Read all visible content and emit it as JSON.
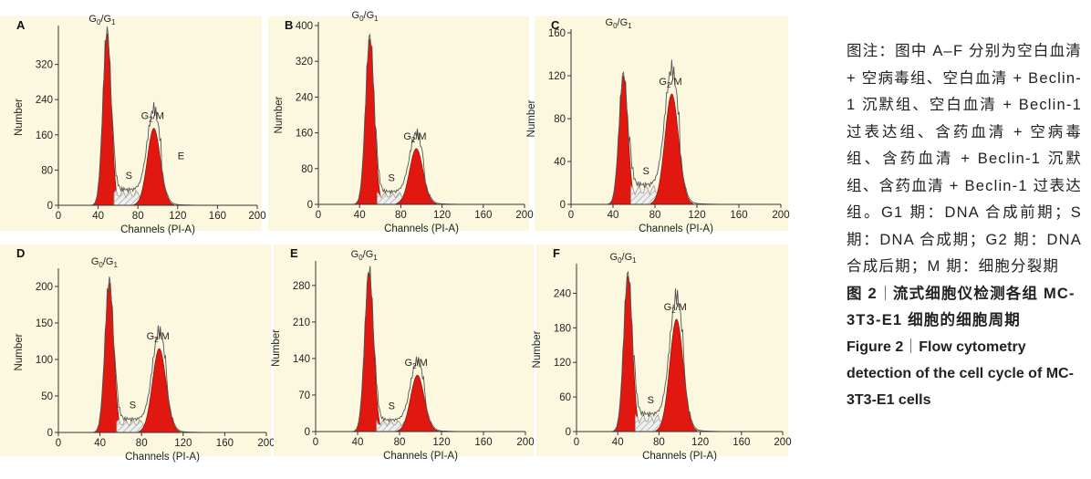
{
  "figure": {
    "chart_data": [
      {
        "type": "area",
        "panel_label": "A",
        "title": "",
        "xlabel": "Channels (PI-A)",
        "ylabel": "Number",
        "xlim": [
          0,
          200
        ],
        "ylim": [
          0,
          400
        ],
        "xticks": [
          "0",
          "40",
          "80",
          "120",
          "160",
          "200"
        ],
        "yticks": [
          "0",
          "80",
          "160",
          "240",
          "320"
        ],
        "phases": {
          "g0g1_peak": {
            "x": 49,
            "y": 390
          },
          "g2m_peak": {
            "x": 96,
            "y": 175
          },
          "s_level": 35
        },
        "annotations": [
          {
            "text": "G0/G1",
            "sub": [
              "0",
              "1"
            ],
            "base": [
              "G",
              "/G"
            ]
          },
          {
            "text": "G2/M"
          },
          {
            "text": "S"
          },
          {
            "text": "E"
          }
        ]
      },
      {
        "type": "area",
        "panel_label": "B",
        "title": "",
        "xlabel": "Channels (PI-A)",
        "ylabel": "Number",
        "xlim": [
          0,
          200
        ],
        "ylim": [
          0,
          400
        ],
        "xticks": [
          "0",
          "40",
          "80",
          "120",
          "160",
          "200"
        ],
        "yticks": [
          "0",
          "80",
          "160",
          "240",
          "320",
          "400"
        ],
        "phases": {
          "g0g1_peak": {
            "x": 50,
            "y": 370
          },
          "g2m_peak": {
            "x": 95,
            "y": 125
          },
          "s_level": 28
        },
        "annotations": [
          {
            "text": "G0/G1"
          },
          {
            "text": "G2/M"
          },
          {
            "text": "S"
          }
        ]
      },
      {
        "type": "area",
        "panel_label": "C",
        "title": "",
        "xlabel": "Channels (PI-A)",
        "ylabel": "Number",
        "xlim": [
          0,
          200
        ],
        "ylim": [
          0,
          160
        ],
        "xticks": [
          "0",
          "40",
          "80",
          "120",
          "160",
          "200"
        ],
        "yticks": [
          "0",
          "40",
          "80",
          "120",
          "160"
        ],
        "phases": {
          "g0g1_peak": {
            "x": 50,
            "y": 120
          },
          "g2m_peak": {
            "x": 96,
            "y": 103
          },
          "s_level": 18
        },
        "annotations": [
          {
            "text": "G0/G1"
          },
          {
            "text": "G2/M"
          },
          {
            "text": "S"
          }
        ]
      },
      {
        "type": "area",
        "panel_label": "D",
        "title": "",
        "xlabel": "Channels (PI-A)",
        "ylabel": "Number",
        "xlim": [
          0,
          200
        ],
        "ylim": [
          0,
          220
        ],
        "xticks": [
          "0",
          "40",
          "80",
          "120",
          "160",
          "200"
        ],
        "yticks": [
          "0",
          "50",
          "100",
          "150",
          "200"
        ],
        "phases": {
          "g0g1_peak": {
            "x": 49,
            "y": 205
          },
          "g2m_peak": {
            "x": 97,
            "y": 115
          },
          "s_level": 18
        },
        "annotations": [
          {
            "text": "G0/G1"
          },
          {
            "text": "G2/M"
          },
          {
            "text": "S"
          }
        ]
      },
      {
        "type": "area",
        "panel_label": "E",
        "title": "",
        "xlabel": "Channels (PI-A)",
        "ylabel": "Number",
        "xlim": [
          0,
          200
        ],
        "ylim": [
          0,
          320
        ],
        "xticks": [
          "0",
          "40",
          "80",
          "120",
          "160",
          "200"
        ],
        "yticks": [
          "0",
          "70",
          "140",
          "210",
          "280"
        ],
        "phases": {
          "g0g1_peak": {
            "x": 51,
            "y": 305
          },
          "g2m_peak": {
            "x": 97,
            "y": 108
          },
          "s_level": 22
        },
        "annotations": [
          {
            "text": "G0/G1"
          },
          {
            "text": "G2/M"
          },
          {
            "text": "S"
          }
        ]
      },
      {
        "type": "area",
        "panel_label": "F",
        "title": "",
        "xlabel": "Channels (PI-A)",
        "ylabel": "Number",
        "xlim": [
          0,
          200
        ],
        "ylim": [
          0,
          285
        ],
        "xticks": [
          "0",
          "40",
          "80",
          "120",
          "160",
          "200"
        ],
        "yticks": [
          "0",
          "60",
          "120",
          "180",
          "240"
        ],
        "phases": {
          "g0g1_peak": {
            "x": 50,
            "y": 270
          },
          "g2m_peak": {
            "x": 97,
            "y": 195
          },
          "s_level": 30
        },
        "annotations": [
          {
            "text": "G0/G1"
          },
          {
            "text": "G2/M"
          },
          {
            "text": "S"
          }
        ]
      }
    ],
    "colors": {
      "panel_bg": "#fbf8df",
      "fill": "#e0180f",
      "curve": "#555555",
      "hatch": "#9a9a9a"
    }
  },
  "caption": {
    "note": "图注：图中 A–F 分别为空白血清 + 空病毒组、空白血清 + Beclin-1 沉默组、空白血清 + Beclin-1 过表达组、含药血清 + 空病毒组、含药血清 + Beclin-1 沉默组、含药血清 + Beclin-1 过表达组。G1 期：DNA 合成前期；S 期：DNA 合成期；G2 期：DNA 合成后期；M 期：细胞分裂期",
    "cn_title_num": "图 2",
    "cn_title_text": "流式细胞仪检测各组 MC-3T3-E1 细胞的细胞周期",
    "en_title_num": "Figure 2",
    "en_title_text": "Flow cytometry detection of the cell cycle of MC-3T3-E1 cells"
  }
}
